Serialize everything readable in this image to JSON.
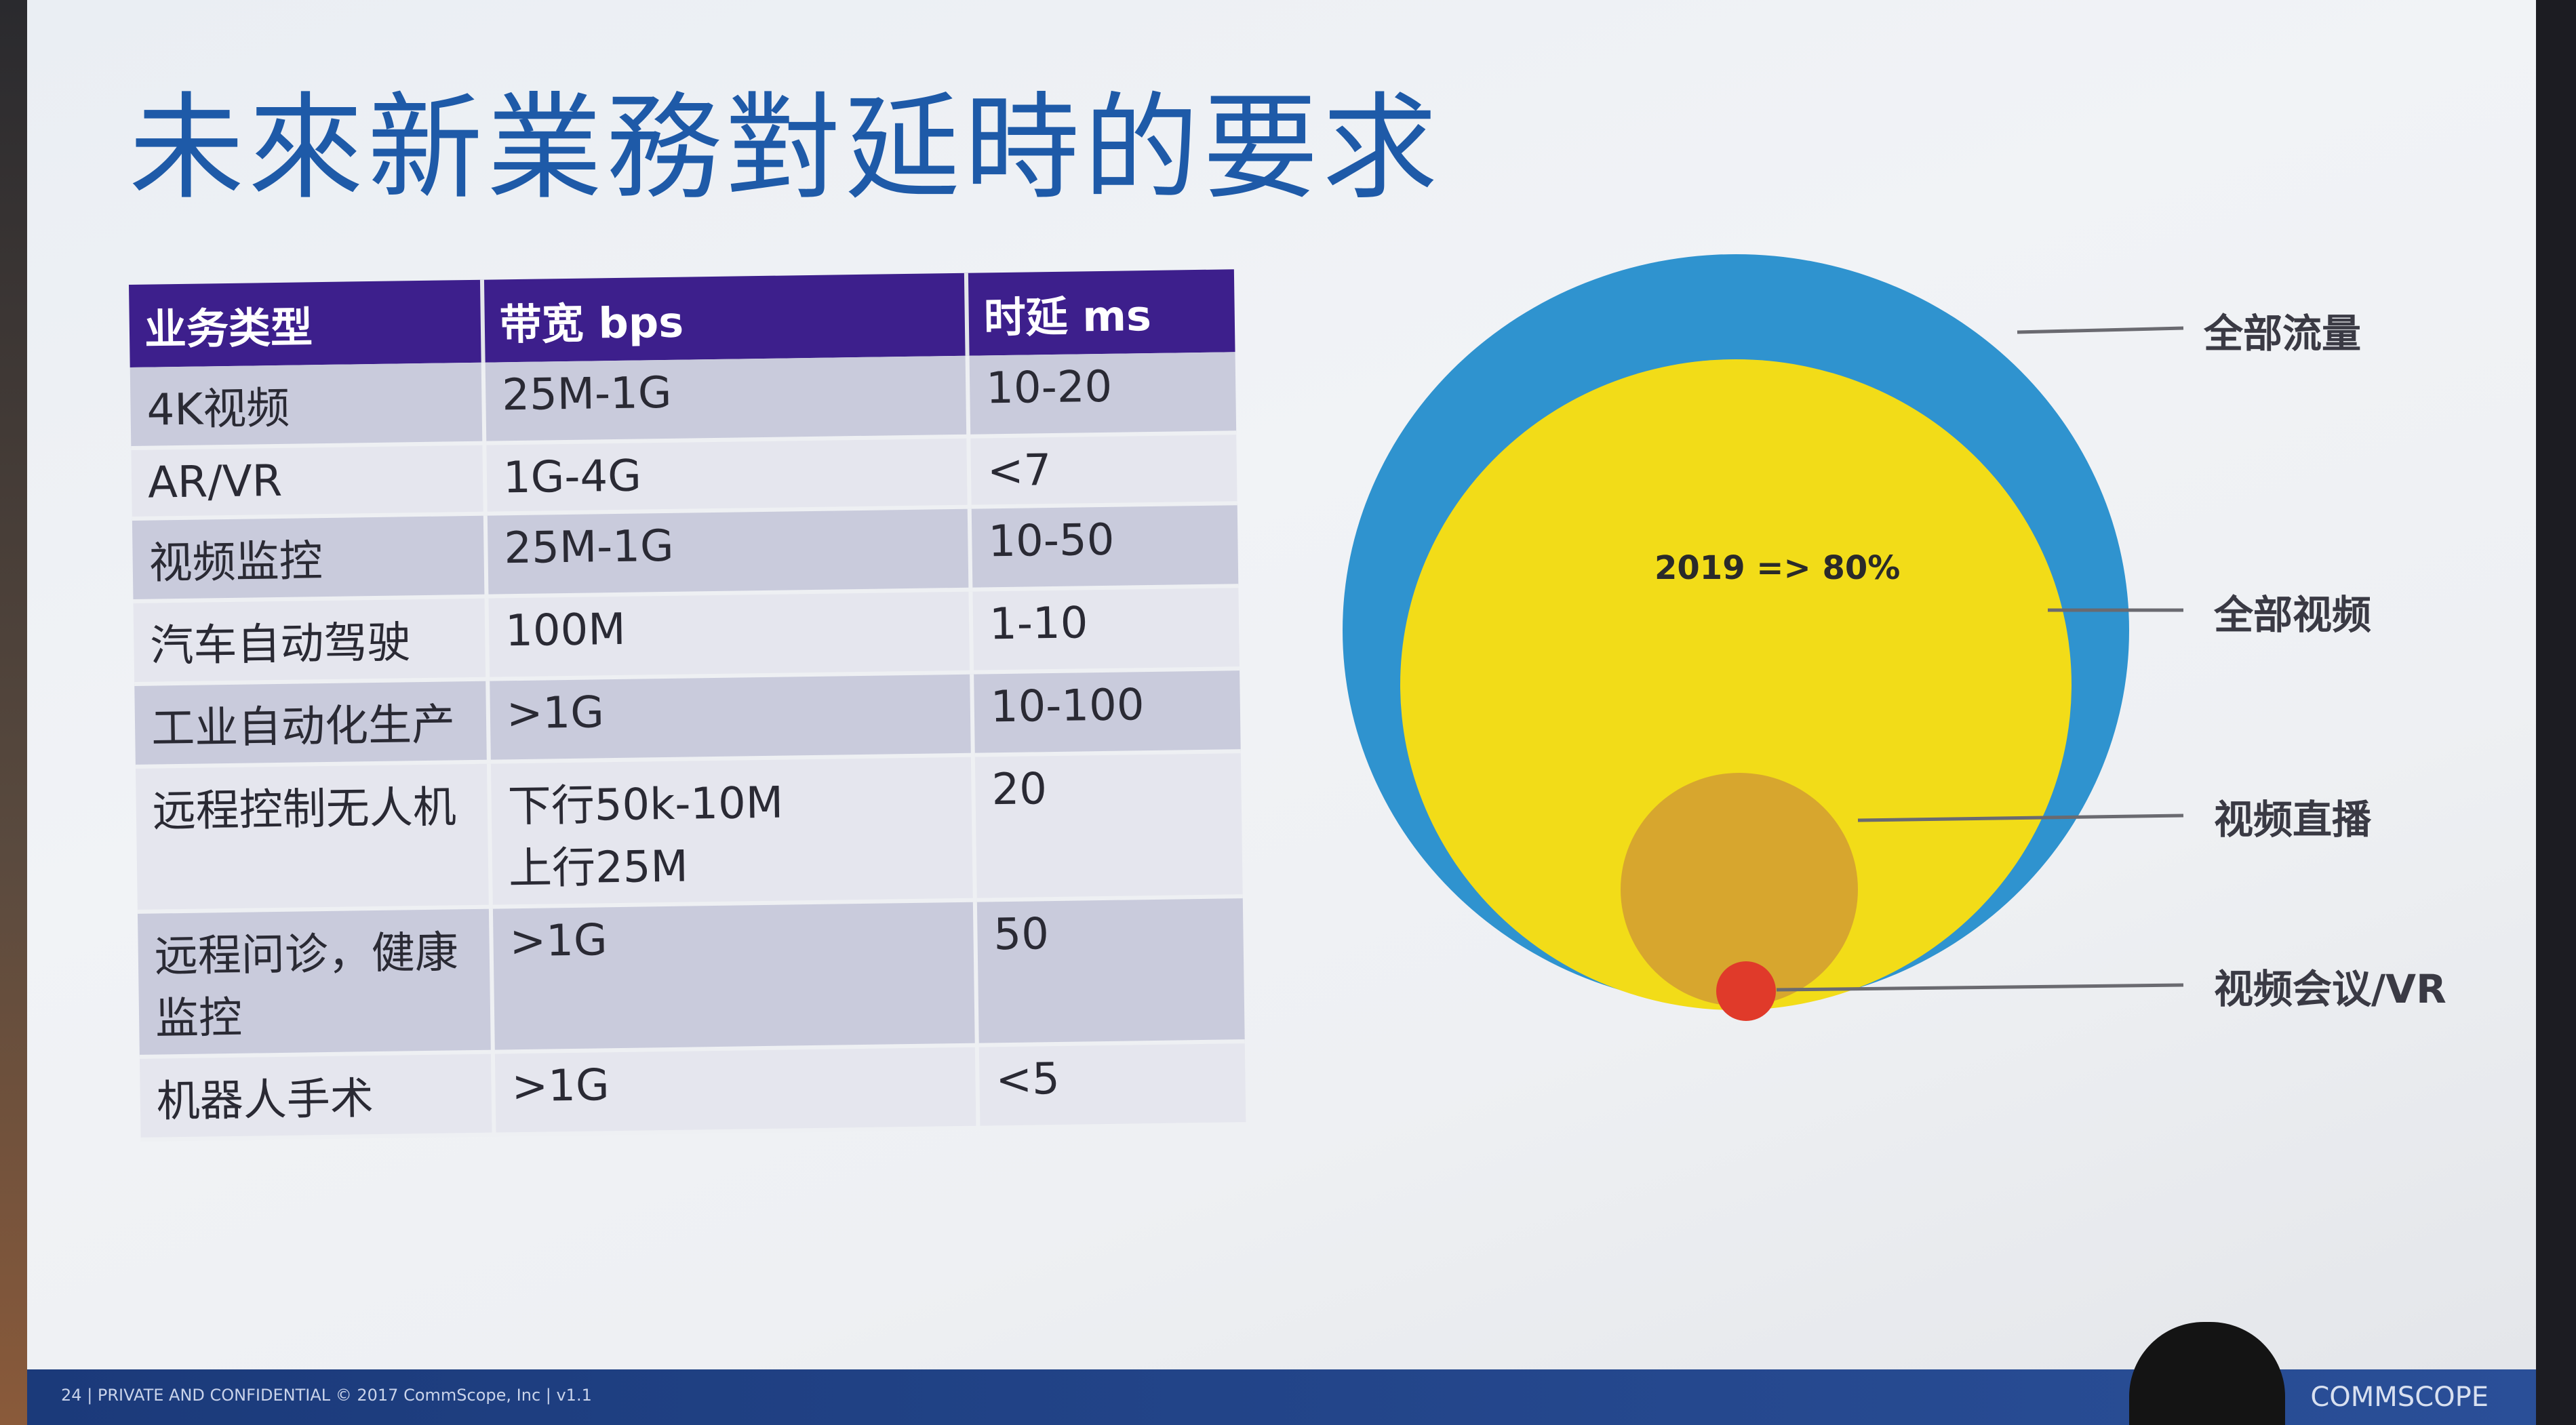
{
  "slide": {
    "title": "未來新業務對延時的要求"
  },
  "table": {
    "headers": [
      "业务类型",
      "带宽 bps",
      "时延 ms"
    ],
    "rows": [
      {
        "service": "4K视频",
        "bandwidth": "25M-1G",
        "latency": "10-20"
      },
      {
        "service": "AR/VR",
        "bandwidth": "1G-4G",
        "latency": "<7"
      },
      {
        "service": "视频监控",
        "bandwidth": "25M-1G",
        "latency": "10-50"
      },
      {
        "service": "汽车自动驾驶",
        "bandwidth": "100M",
        "latency": "1-10"
      },
      {
        "service": "工业自动化生产",
        "bandwidth": ">1G",
        "latency": "10-100"
      },
      {
        "service": "远程控制无人机",
        "bandwidth": "下行50k-10M\n上行25M",
        "latency": "20"
      },
      {
        "service": "远程问诊，健康\n监控",
        "bandwidth": ">1G",
        "latency": "50"
      },
      {
        "service": "机器人手术",
        "bandwidth": ">1G",
        "latency": "<5"
      }
    ]
  },
  "diagram": {
    "center_text": "2019 => 80%",
    "labels": {
      "all_traffic": "全部流量",
      "all_video": "全部视频",
      "live_video": "视频直播",
      "video_conf_vr": "视频会议/VR"
    },
    "colors": {
      "all_traffic": "#2f93cf",
      "all_video": "#f2dc18",
      "live_video": "#d7a62e",
      "video_conf_vr": "#e03a2a"
    }
  },
  "footer": {
    "page": "24",
    "notice": "PRIVATE AND CONFIDENTIAL © 2017  CommScope, Inc | v1.1",
    "brand": "COMMSCOPE"
  }
}
